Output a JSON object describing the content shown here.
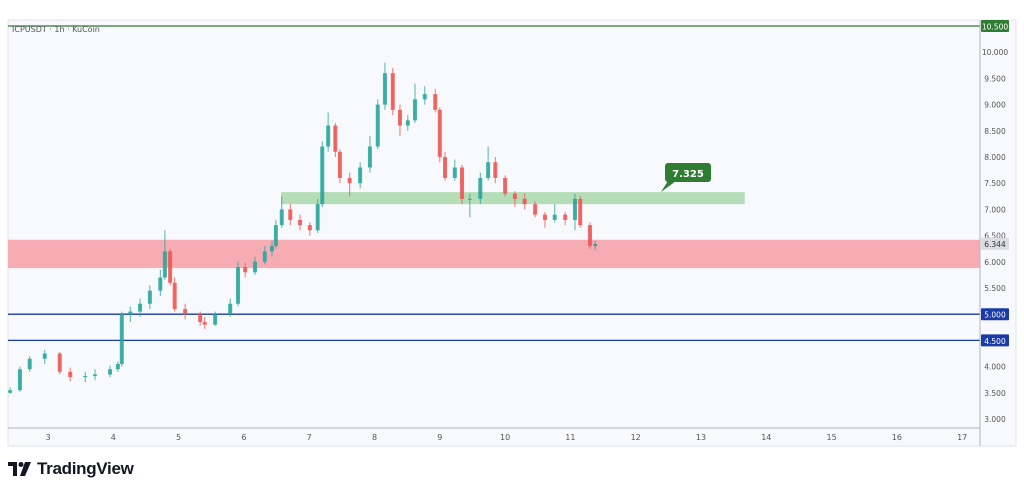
{
  "header": {
    "symbol_line": "ICPUSDT · 1h · KuCoin"
  },
  "branding": {
    "logo_text": "TradingView"
  },
  "colors": {
    "background": "#f8f9fd",
    "up": "#26a69a",
    "down": "#ef5350",
    "support_zone": "#f7a8b0",
    "resistance_zone": "#a9d8ac",
    "resistance_label": "#2e7d32",
    "horizontal_level": "#1a3aa8",
    "top_level": "#2e7d32"
  },
  "chart_data": {
    "type": "candlestick",
    "title": "ICPUSDT · 1h · KuCoin",
    "xlabel": "",
    "ylabel": "",
    "ylim": [
      3.0,
      10.5
    ],
    "xlim_days": [
      2.3,
      17.4
    ],
    "grid": false,
    "y_ticks": [
      "3.000",
      "3.500",
      "4.000",
      "4.500",
      "5.000",
      "5.500",
      "6.000",
      "6.500",
      "7.000",
      "7.500",
      "8.000",
      "8.500",
      "9.000",
      "9.500",
      "10.000",
      "10.500"
    ],
    "x_ticks": [
      3,
      4,
      5,
      6,
      7,
      8,
      9,
      10,
      11,
      12,
      13,
      14,
      15,
      16,
      17
    ],
    "last_price": "6.344",
    "levels": [
      {
        "value": 10.5,
        "label": "10.500",
        "color": "#2e7d32"
      },
      {
        "value": 5.0,
        "label": "5.000",
        "color": "#1a3aa8"
      },
      {
        "value": 4.5,
        "label": "4.500",
        "color": "#1a3aa8"
      }
    ],
    "zones": [
      {
        "kind": "support",
        "low": 5.88,
        "high": 6.42,
        "from_day": 2.3,
        "to_day": 17.4
      },
      {
        "kind": "resistance",
        "low": 7.1,
        "high": 7.33,
        "from_day": 6.57,
        "to_day": 13.67,
        "label": "7.325"
      }
    ],
    "candles_columns": [
      "day",
      "open",
      "high",
      "low",
      "close"
    ],
    "candles": [
      [
        2.42,
        3.5,
        3.6,
        3.48,
        3.55
      ],
      [
        2.57,
        3.55,
        4.0,
        3.52,
        3.95
      ],
      [
        2.72,
        3.95,
        4.2,
        3.9,
        4.15
      ],
      [
        2.95,
        4.15,
        4.32,
        4.05,
        4.25
      ],
      [
        3.18,
        4.25,
        4.28,
        3.85,
        3.9
      ],
      [
        3.34,
        3.9,
        3.98,
        3.72,
        3.8
      ],
      [
        3.57,
        3.8,
        3.9,
        3.7,
        3.82
      ],
      [
        3.72,
        3.82,
        3.95,
        3.74,
        3.85
      ],
      [
        3.95,
        3.85,
        4.02,
        3.8,
        3.95
      ],
      [
        4.07,
        3.95,
        4.1,
        3.9,
        4.05
      ],
      [
        4.13,
        4.05,
        5.05,
        4.0,
        5.0
      ],
      [
        4.26,
        5.0,
        5.15,
        4.85,
        5.05
      ],
      [
        4.41,
        5.05,
        5.3,
        4.95,
        5.2
      ],
      [
        4.56,
        5.2,
        5.55,
        5.1,
        5.45
      ],
      [
        4.72,
        5.45,
        5.85,
        5.35,
        5.7
      ],
      [
        4.79,
        5.7,
        6.6,
        5.65,
        6.2
      ],
      [
        4.87,
        6.2,
        6.25,
        5.55,
        5.6
      ],
      [
        4.94,
        5.6,
        5.7,
        5.05,
        5.1
      ],
      [
        5.1,
        5.1,
        5.2,
        4.9,
        5.0
      ],
      [
        5.33,
        5.0,
        5.05,
        4.78,
        4.85
      ],
      [
        5.4,
        4.85,
        4.95,
        4.72,
        4.8
      ],
      [
        5.56,
        4.8,
        5.05,
        4.78,
        5.0
      ],
      [
        5.79,
        5.0,
        5.3,
        4.95,
        5.2
      ],
      [
        5.91,
        5.2,
        6.0,
        5.15,
        5.9
      ],
      [
        6.02,
        5.9,
        5.98,
        5.7,
        5.8
      ],
      [
        6.17,
        5.8,
        6.1,
        5.75,
        6.0
      ],
      [
        6.32,
        6.0,
        6.3,
        5.95,
        6.2
      ],
      [
        6.43,
        6.2,
        6.4,
        6.1,
        6.3
      ],
      [
        6.49,
        6.3,
        6.8,
        6.25,
        6.7
      ],
      [
        6.58,
        6.7,
        7.25,
        6.65,
        7.0
      ],
      [
        6.71,
        7.0,
        7.1,
        6.7,
        6.8
      ],
      [
        6.86,
        6.8,
        6.9,
        6.6,
        6.7
      ],
      [
        7.01,
        6.7,
        6.75,
        6.5,
        6.6
      ],
      [
        7.13,
        6.6,
        7.2,
        6.55,
        7.1
      ],
      [
        7.2,
        7.1,
        8.3,
        7.05,
        8.2
      ],
      [
        7.29,
        8.2,
        8.85,
        8.1,
        8.6
      ],
      [
        7.4,
        8.6,
        8.65,
        8.0,
        8.1
      ],
      [
        7.47,
        8.1,
        8.15,
        7.5,
        7.6
      ],
      [
        7.62,
        7.6,
        7.7,
        7.25,
        7.5
      ],
      [
        7.78,
        7.5,
        7.9,
        7.4,
        7.8
      ],
      [
        7.93,
        7.8,
        8.4,
        7.7,
        8.2
      ],
      [
        8.05,
        8.2,
        9.1,
        8.15,
        9.0
      ],
      [
        8.16,
        9.0,
        9.8,
        8.9,
        9.6
      ],
      [
        8.28,
        9.6,
        9.7,
        8.8,
        8.9
      ],
      [
        8.39,
        8.9,
        9.0,
        8.4,
        8.6
      ],
      [
        8.51,
        8.6,
        8.8,
        8.5,
        8.7
      ],
      [
        8.62,
        8.7,
        9.4,
        8.65,
        9.1
      ],
      [
        8.77,
        9.1,
        9.35,
        9.0,
        9.2
      ],
      [
        8.93,
        9.2,
        9.3,
        8.85,
        8.9
      ],
      [
        9.0,
        8.9,
        8.95,
        7.9,
        8.0
      ],
      [
        9.08,
        8.0,
        8.1,
        7.55,
        7.6
      ],
      [
        9.23,
        7.6,
        7.95,
        7.55,
        7.8
      ],
      [
        9.34,
        7.8,
        7.85,
        7.1,
        7.2
      ],
      [
        9.46,
        7.2,
        7.3,
        6.85,
        7.2
      ],
      [
        9.62,
        7.2,
        7.7,
        7.1,
        7.6
      ],
      [
        9.74,
        7.6,
        8.2,
        7.55,
        7.9
      ],
      [
        9.85,
        7.9,
        8.0,
        7.5,
        7.6
      ],
      [
        10.0,
        7.6,
        7.65,
        7.25,
        7.3
      ],
      [
        10.15,
        7.3,
        7.35,
        7.05,
        7.2
      ],
      [
        10.3,
        7.2,
        7.3,
        7.0,
        7.1
      ],
      [
        10.46,
        7.1,
        7.15,
        6.85,
        6.9
      ],
      [
        10.61,
        6.9,
        6.95,
        6.65,
        6.8
      ],
      [
        10.76,
        6.8,
        7.1,
        6.75,
        6.9
      ],
      [
        10.92,
        6.9,
        6.95,
        6.7,
        6.8
      ],
      [
        11.07,
        6.8,
        7.3,
        6.6,
        7.2
      ],
      [
        11.15,
        7.2,
        7.25,
        6.65,
        6.7
      ],
      [
        11.3,
        6.7,
        6.75,
        6.25,
        6.3
      ],
      [
        11.38,
        6.3,
        6.4,
        6.22,
        6.34
      ]
    ]
  }
}
